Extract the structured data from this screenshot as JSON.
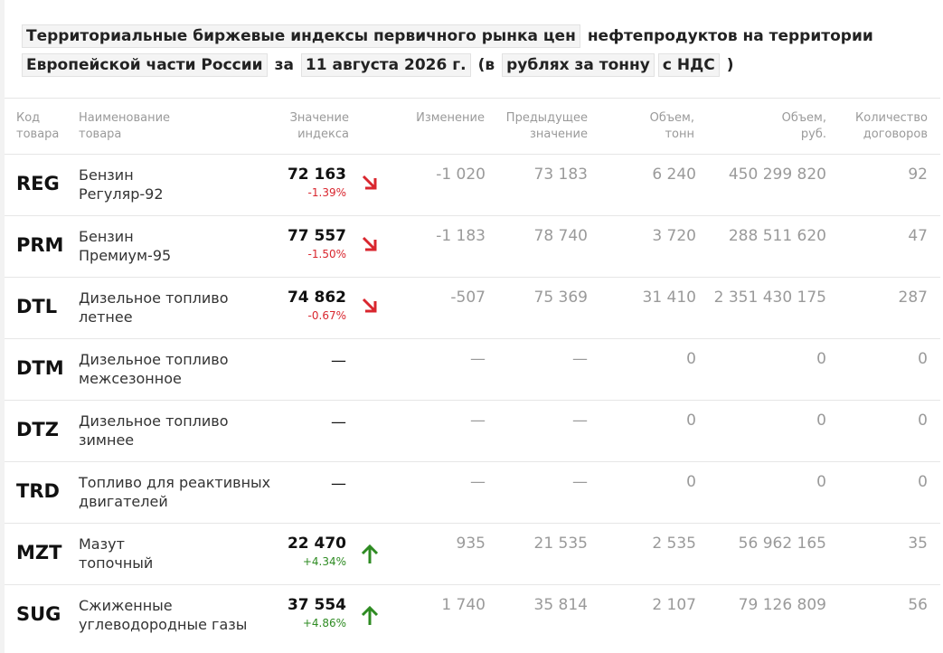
{
  "title": {
    "segments": [
      {
        "text": "Территориальные биржевые индексы первичного рынка цен",
        "boxed": true
      },
      {
        "text": "нефтепродуктов на территории",
        "boxed": false
      },
      {
        "text": "Европейской части России",
        "boxed": true
      },
      {
        "text": "за",
        "boxed": false
      },
      {
        "text": "11 августа 2026 г.",
        "boxed": true
      },
      {
        "text": "(в",
        "boxed": false
      },
      {
        "text": "рублях за тонну",
        "boxed": true
      },
      {
        "text": "с НДС",
        "boxed": true
      },
      {
        "text": ")",
        "boxed": false
      }
    ]
  },
  "table": {
    "headers": [
      "Код\nтовара",
      "Наименование\nтовара",
      "Значение\nиндекса",
      "Изменение",
      "Предыдущее\nзначение",
      "Объем,\nтонн",
      "Объем,\nруб.",
      "Количество\nдоговоров"
    ],
    "rows": [
      [
        "REG",
        "Бензин\nРегуляр-92",
        "72 163",
        "-1.39%",
        "-1 020",
        "73 183",
        "6 240",
        "450 299 820",
        "92"
      ],
      [
        "PRM",
        "Бензин\nПремиум-95",
        "77 557",
        "-1.50%",
        "-1 183",
        "78 740",
        "3 720",
        "288 511 620",
        "47"
      ],
      [
        "DTL",
        "Дизельное топливо\nлетнее",
        "74 862",
        "-0.67%",
        "-507",
        "75 369",
        "31 410",
        "2 351 430 175",
        "287"
      ],
      [
        "DTM",
        "Дизельное топливо\nмежсезонное",
        "—",
        null,
        "—",
        "—",
        "0",
        "0",
        "0"
      ],
      [
        "DTZ",
        "Дизельное топливо\nзимнее",
        "—",
        null,
        "—",
        "—",
        "0",
        "0",
        "0"
      ],
      [
        "TRD",
        "Топливо для реактивных\nдвигателей",
        "—",
        null,
        "—",
        "—",
        "0",
        "0",
        "0"
      ],
      [
        "MZT",
        "Мазут\nтопочный",
        "22 470",
        "+4.34%",
        "935",
        "21 535",
        "2 535",
        "56 962 165",
        "35"
      ],
      [
        "SUG",
        "Сжиженные\nуглеводородные газы",
        "37 554",
        "+4.86%",
        "1 740",
        "35 814",
        "2 107",
        "79 126 809",
        "56"
      ]
    ]
  }
}
